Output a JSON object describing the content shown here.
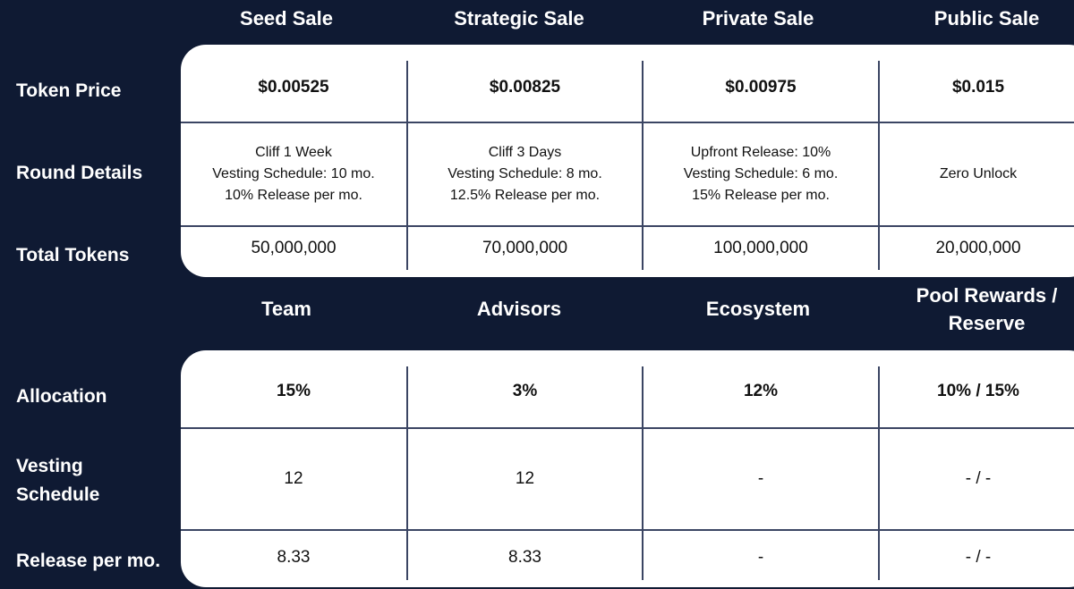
{
  "sale": {
    "headers": [
      "Seed Sale",
      "Strategic Sale",
      "Private Sale",
      "Public Sale"
    ],
    "row_labels": [
      "Token Price",
      "Round Details",
      "Total Tokens"
    ],
    "token_price": [
      "$0.00525",
      "$0.00825",
      "$0.00975",
      "$0.015"
    ],
    "round_details": [
      "Cliff 1 Week\nVesting Schedule: 10 mo.\n10% Release per mo.",
      "Cliff 3 Days\nVesting Schedule: 8 mo.\n12.5% Release per mo.",
      "Upfront Release: 10%\nVesting Schedule: 6 mo.\n15% Release per mo.",
      "Zero Unlock"
    ],
    "total_tokens": [
      "50,000,000",
      "70,000,000",
      "100,000,000",
      "20,000,000"
    ]
  },
  "allocation": {
    "headers": [
      "Team",
      "Advisors",
      "Ecosystem",
      "Pool Rewards /\nReserve"
    ],
    "row_labels": [
      "Allocation",
      "Vesting\nSchedule",
      "Release per mo."
    ],
    "allocation": [
      "15%",
      "3%",
      "12%",
      "10% / 15%"
    ],
    "vesting_schedule": [
      "12",
      "12",
      "-",
      "- / -"
    ],
    "release_per_mo": [
      "8.33",
      "8.33",
      "-",
      "- / -"
    ]
  }
}
